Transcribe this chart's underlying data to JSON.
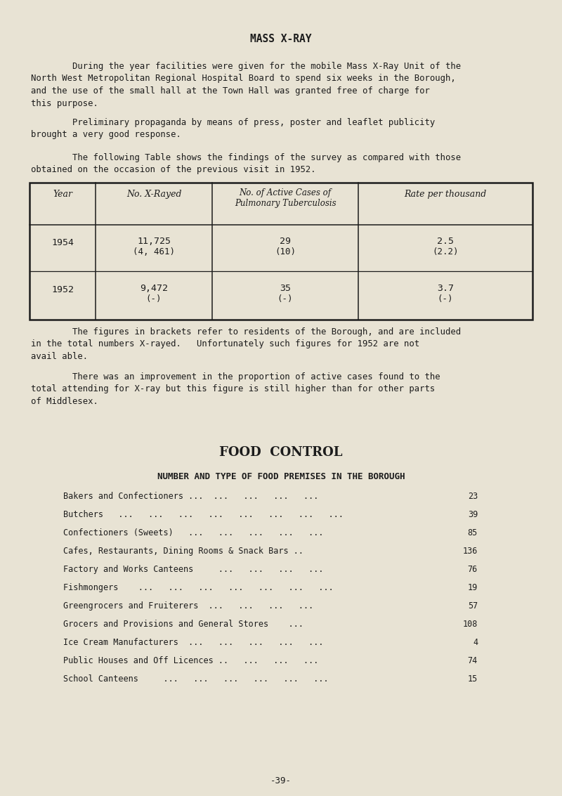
{
  "bg_color": "#e8e3d4",
  "title": "MASS X-RAY",
  "para1_indent": "        During the year facilities were given for the mobile Mass X-Ray Unit of the\nNorth West Metropolitan Regional Hospital Board to spend six weeks in the Borough,\nand the use of the small hall at the Town Hall was granted free of charge for\nthis purpose.",
  "para2_indent": "        Preliminary propaganda by means of press, poster and leaflet publicity\nbrought a very good response.",
  "para3_indent": "        The following Table shows the findings of the survey as compared with those\nobtained on the occasion of the previous visit in 1952.",
  "para4": "        The figures in brackets refer to residents of the Borough, and are included\nin the total numbers X-rayed.   Unfortunately such figures for 1952 are not\navail able.",
  "para5": "        There was an improvement in the proportion of active cases found to the\ntotal attending for X-ray but this figure is still higher than for other parts\nof Middlesex.",
  "table_col_labels": [
    "Year",
    "No. X-Rayed",
    "No. of Active Cases of\nPulmonary Tuberculosis",
    "Rate per thousand"
  ],
  "row1_year": "1954",
  "row1_xrayed": "11,725\n(4, 461)",
  "row1_active": "29\n(10)",
  "row1_rate": "2.5\n(2.2)",
  "row2_year": "1952",
  "row2_xrayed": "9,472\n(-)",
  "row2_active": "35\n(-)",
  "row2_rate": "3.7\n(-)",
  "section2_title": "FOOD  CONTROL",
  "section2_subtitle": "NUMBER AND TYPE OF FOOD PREMISES IN THE BOROUGH",
  "food_items_left": [
    "Bakers and Confectioners ...  ...   ...   ...   ...",
    "Butchers   ...   ...   ...   ...   ...   ...   ...   ...",
    "Confectioners (Sweets)   ...   ...   ...   ...   ...",
    "Cafes, Restaurants, Dining Rooms & Snack Bars ..",
    "Factory and Works Canteens     ...   ...   ...   ...",
    "Fishmongers    ...   ...   ...   ...   ...   ...   ...",
    "Greengrocers and Fruiterers  ...   ...   ...   ...",
    "Grocers and Provisions and General Stores    ...",
    "Ice Cream Manufacturers  ...   ...   ...   ...   ...",
    "Public Houses and Off Licences ..   ...   ...   ...",
    "School Canteens     ...   ...   ...   ...   ...   ..."
  ],
  "food_items_right": [
    "23",
    "39",
    "85",
    "136",
    "76",
    "19",
    "57",
    "108",
    "4",
    "74",
    "15"
  ],
  "footer": "-39-",
  "text_color": "#1c1c1c"
}
